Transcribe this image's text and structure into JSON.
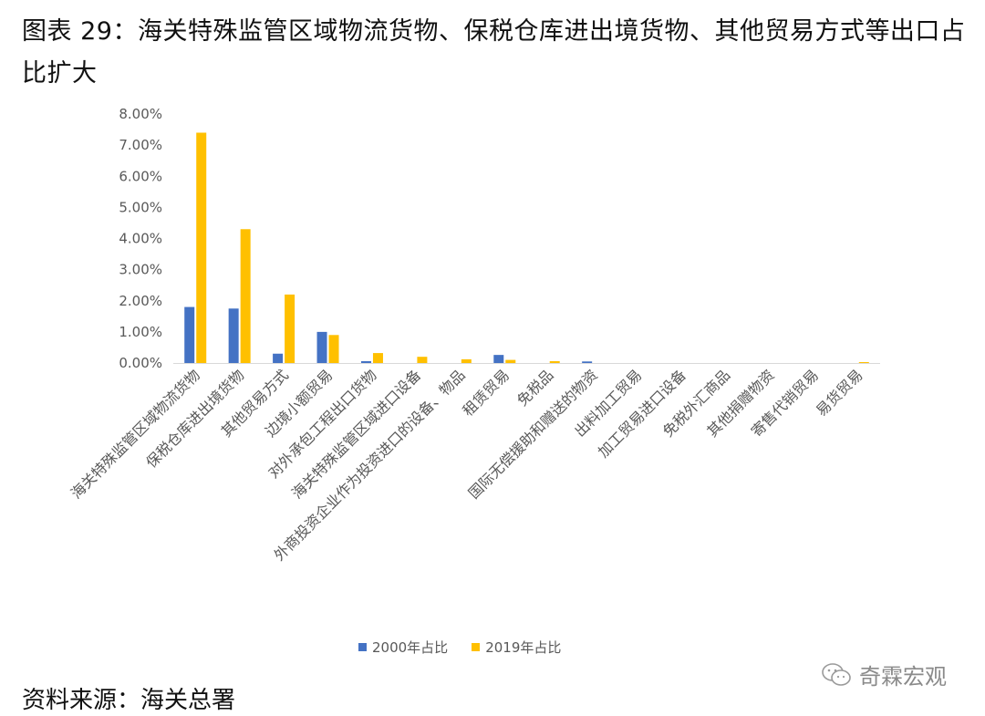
{
  "title": "图表 29：海关特殊监管区域物流货物、保税仓库进出境货物、其他贸易方式等出口占比扩大",
  "source": "资料来源：海关总署",
  "watermark": "奇霖宏观",
  "colors": {
    "series_2000": "#4472C4",
    "series_2019": "#FFC000",
    "axis": "#D9D9D9"
  },
  "chart_data": {
    "type": "bar",
    "ylim": [
      0,
      8
    ],
    "y_ticks": [
      "0.00%",
      "1.00%",
      "2.00%",
      "3.00%",
      "4.00%",
      "5.00%",
      "6.00%",
      "7.00%",
      "8.00%"
    ],
    "grid": false,
    "legend_position": "bottom",
    "categories": [
      "海关特殊监管区域物流货物",
      "保税仓库进出境货物",
      "其他贸易方式",
      "边境小额贸易",
      "对外承包工程出口货物",
      "海关特殊监管区域进口设备",
      "外商投资企业作为投资进口的设备、物品",
      "租赁贸易",
      "免税品",
      "国际无偿援助和赠送的物资",
      "出料加工贸易",
      "加工贸易进口设备",
      "免税外汇商品",
      "其他捐赠物资",
      "寄售代销贸易",
      "易货贸易"
    ],
    "series": [
      {
        "name": "2000年占比",
        "values": [
          1.8,
          1.75,
          0.3,
          1.0,
          0.06,
          0.0,
          0.0,
          0.26,
          0.0,
          0.05,
          0.0,
          0.0,
          0.0,
          0.0,
          0.0,
          0.0
        ]
      },
      {
        "name": "2019年占比",
        "values": [
          7.4,
          4.3,
          2.2,
          0.9,
          0.32,
          0.2,
          0.12,
          0.1,
          0.06,
          0.0,
          0.0,
          0.0,
          0.0,
          0.0,
          0.0,
          0.03
        ]
      }
    ]
  }
}
